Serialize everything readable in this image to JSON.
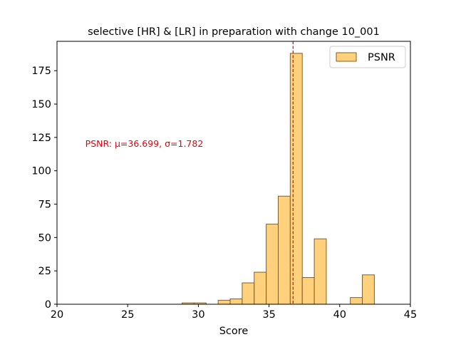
{
  "chart_data": {
    "type": "bar",
    "title": "selective [HR] & [LR] in preparation with change 10_001",
    "xlabel": "Score",
    "ylabel": "",
    "xlim": [
      20,
      45
    ],
    "ylim": [
      0,
      197
    ],
    "x_ticks": [
      20,
      25,
      30,
      35,
      40,
      45
    ],
    "y_ticks": [
      0,
      25,
      50,
      75,
      100,
      125,
      150,
      175
    ],
    "bin_width": 0.85,
    "series": [
      {
        "name": "PSNR",
        "bins": [
          {
            "start": 28.85,
            "count": 1
          },
          {
            "start": 29.7,
            "count": 1
          },
          {
            "start": 31.4,
            "count": 3
          },
          {
            "start": 32.25,
            "count": 4
          },
          {
            "start": 33.1,
            "count": 16
          },
          {
            "start": 33.95,
            "count": 24
          },
          {
            "start": 34.8,
            "count": 60
          },
          {
            "start": 35.65,
            "count": 81
          },
          {
            "start": 36.5,
            "count": 188
          },
          {
            "start": 37.35,
            "count": 20
          },
          {
            "start": 38.2,
            "count": 49
          },
          {
            "start": 40.75,
            "count": 5
          },
          {
            "start": 41.6,
            "count": 22
          }
        ],
        "fill": "#ffc966",
        "edge": "#806020"
      }
    ],
    "mean_line": {
      "x": 36.699,
      "color": "#e8000b"
    },
    "annotation": {
      "text": "PSNR: μ=36.699, σ=1.782",
      "x": 22,
      "y": 120,
      "color": "#e8000b"
    },
    "legend": {
      "placement": "top-right",
      "entries": [
        "PSNR"
      ]
    },
    "grid": false
  }
}
